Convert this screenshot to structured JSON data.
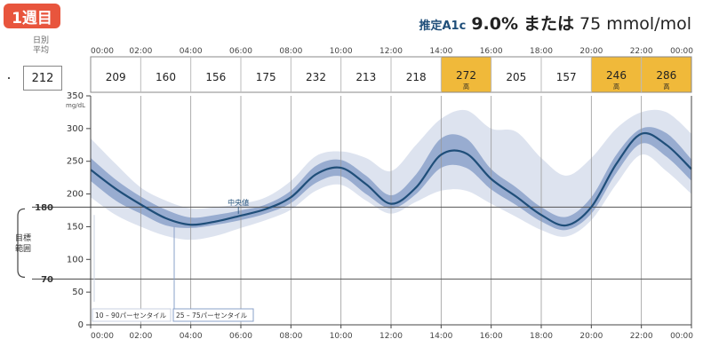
{
  "badge": "1週目",
  "a1c": {
    "label": "推定A1c",
    "value": "9.0%",
    "connector": "または",
    "mmol": "75 mmol/mol"
  },
  "daily_average": {
    "label_line1": "日別",
    "label_line2": "平均",
    "value": "212"
  },
  "target": {
    "label_line1": "目標",
    "label_line2": "範囲",
    "low": 70,
    "high": 180
  },
  "colors": {
    "band_outer": "#dde3ef",
    "band_inner": "#98acd0",
    "median": "#1f4e79",
    "highlight": "#f0b93a",
    "grid": "#555555"
  },
  "chart_data": {
    "type": "area",
    "title": "",
    "xlabel": "",
    "ylabel": "mg/dL",
    "x_ticks": [
      "00:00",
      "02:00",
      "04:00",
      "06:00",
      "08:00",
      "10:00",
      "12:00",
      "14:00",
      "16:00",
      "18:00",
      "20:00",
      "22:00",
      "00:00"
    ],
    "xlim": [
      0,
      24
    ],
    "ylim": [
      0,
      350
    ],
    "y_ticks": [
      0,
      50,
      100,
      150,
      200,
      250,
      300,
      350
    ],
    "hourly_averages": [
      {
        "value": "209",
        "flag": ""
      },
      {
        "value": "160",
        "flag": ""
      },
      {
        "value": "156",
        "flag": ""
      },
      {
        "value": "175",
        "flag": ""
      },
      {
        "value": "232",
        "flag": ""
      },
      {
        "value": "213",
        "flag": ""
      },
      {
        "value": "218",
        "flag": ""
      },
      {
        "value": "272",
        "flag": "高"
      },
      {
        "value": "205",
        "flag": ""
      },
      {
        "value": "157",
        "flag": ""
      },
      {
        "value": "246",
        "flag": "高"
      },
      {
        "value": "286",
        "flag": "高"
      }
    ],
    "x": [
      0,
      1,
      2,
      3,
      4,
      5,
      6,
      7,
      8,
      9,
      10,
      11,
      12,
      13,
      14,
      15,
      16,
      17,
      18,
      19,
      20,
      21,
      22,
      23,
      24
    ],
    "median": [
      237,
      208,
      184,
      163,
      153,
      158,
      167,
      177,
      195,
      230,
      240,
      215,
      185,
      210,
      260,
      262,
      223,
      196,
      168,
      152,
      180,
      246,
      292,
      275,
      238
    ],
    "p25": [
      220,
      190,
      170,
      152,
      148,
      153,
      160,
      170,
      186,
      217,
      227,
      200,
      178,
      200,
      240,
      240,
      207,
      183,
      158,
      145,
      170,
      232,
      277,
      257,
      220
    ],
    "p75": [
      255,
      222,
      196,
      176,
      164,
      168,
      175,
      184,
      205,
      243,
      252,
      228,
      198,
      230,
      285,
      285,
      238,
      210,
      180,
      165,
      195,
      260,
      300,
      293,
      253
    ],
    "p10": [
      195,
      168,
      150,
      136,
      130,
      136,
      148,
      160,
      176,
      205,
      214,
      190,
      170,
      188,
      205,
      205,
      185,
      165,
      145,
      135,
      160,
      215,
      260,
      235,
      200
    ],
    "p90": [
      285,
      246,
      210,
      190,
      178,
      180,
      185,
      195,
      220,
      258,
      265,
      255,
      235,
      275,
      315,
      328,
      300,
      295,
      255,
      228,
      255,
      300,
      325,
      325,
      292
    ],
    "annotations": {
      "median_label": "中央値",
      "legend_outer": "10 – 90パーセンタイル",
      "legend_inner": "25 – 75パーセンタイル"
    }
  }
}
